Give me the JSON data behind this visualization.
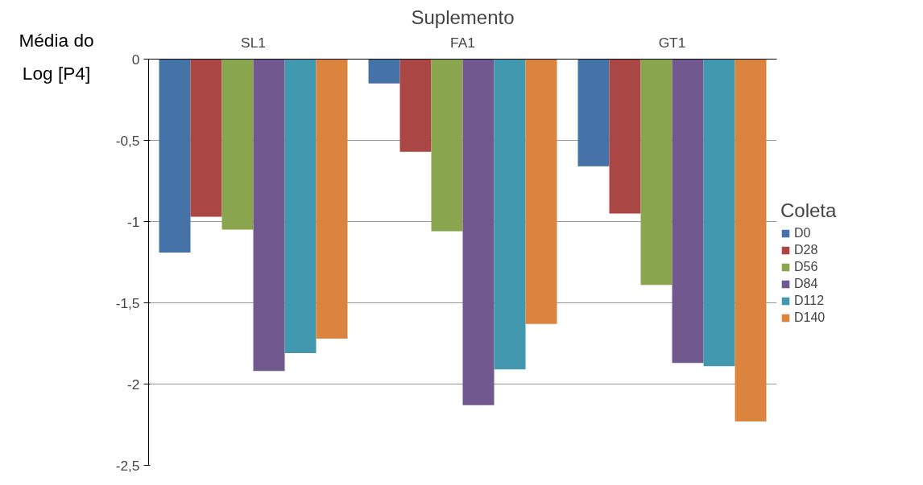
{
  "chart_data": {
    "type": "bar",
    "title": "Suplemento",
    "ylabel": "Média do Log [P4]",
    "legend_title": "Coleta",
    "categories": [
      "SL1",
      "FA1",
      "GT1"
    ],
    "series": [
      {
        "name": "D0",
        "color": "#4572a7",
        "values": [
          -1.19,
          -0.15,
          -0.66
        ]
      },
      {
        "name": "D28",
        "color": "#aa4643",
        "values": [
          -0.97,
          -0.57,
          -0.95
        ]
      },
      {
        "name": "D56",
        "color": "#89a54e",
        "values": [
          -1.05,
          -1.06,
          -1.39
        ]
      },
      {
        "name": "D84",
        "color": "#71588f",
        "values": [
          -1.92,
          -2.13,
          -1.87
        ]
      },
      {
        "name": "D112",
        "color": "#4198af",
        "values": [
          -1.81,
          -1.91,
          -1.89
        ]
      },
      {
        "name": "D140",
        "color": "#db843d",
        "values": [
          -1.72,
          -1.63,
          -2.23
        ]
      }
    ],
    "ylim": [
      -2.5,
      0
    ],
    "yticks": [
      {
        "value": 0,
        "label": "0"
      },
      {
        "value": -0.5,
        "label": "-0,5"
      },
      {
        "value": -1,
        "label": "-1"
      },
      {
        "value": -1.5,
        "label": "-1,5"
      },
      {
        "value": -2,
        "label": "-2"
      },
      {
        "value": -2.5,
        "label": "-2,5"
      }
    ],
    "grid": "y",
    "legend": "right"
  }
}
